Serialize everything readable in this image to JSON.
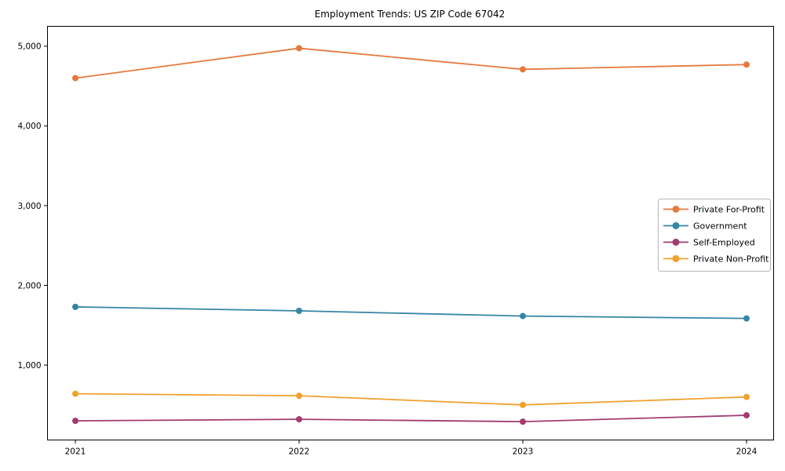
{
  "chart_data": {
    "type": "line",
    "title": "Employment Trends: US ZIP Code 67042",
    "xlabel": "",
    "ylabel": "",
    "x": [
      2021,
      2022,
      2023,
      2024
    ],
    "x_labels": [
      "2021",
      "2022",
      "2023",
      "2024"
    ],
    "series": [
      {
        "name": "Private For-Profit",
        "color": "#E5793C",
        "values": [
          4600,
          4975,
          4710,
          4770
        ]
      },
      {
        "name": "Government",
        "color": "#3585A5",
        "values": [
          1730,
          1680,
          1615,
          1585
        ]
      },
      {
        "name": "Self-Employed",
        "color": "#A23B72",
        "values": [
          300,
          320,
          290,
          370
        ]
      },
      {
        "name": "Private Non-Profit",
        "color": "#F2A02D",
        "values": [
          640,
          615,
          500,
          600
        ]
      }
    ],
    "yticks": [
      1000,
      2000,
      3000,
      4000,
      5000
    ],
    "ytick_labels": [
      "1,000",
      "2,000",
      "3,000",
      "4,000",
      "5,000"
    ],
    "ylim": [
      60,
      5250
    ],
    "grid": false,
    "frame": true,
    "legend_position": "right",
    "legend_border_color": "#b5b5b5",
    "axis_color": "#000000",
    "background_color": "#ffffff"
  }
}
